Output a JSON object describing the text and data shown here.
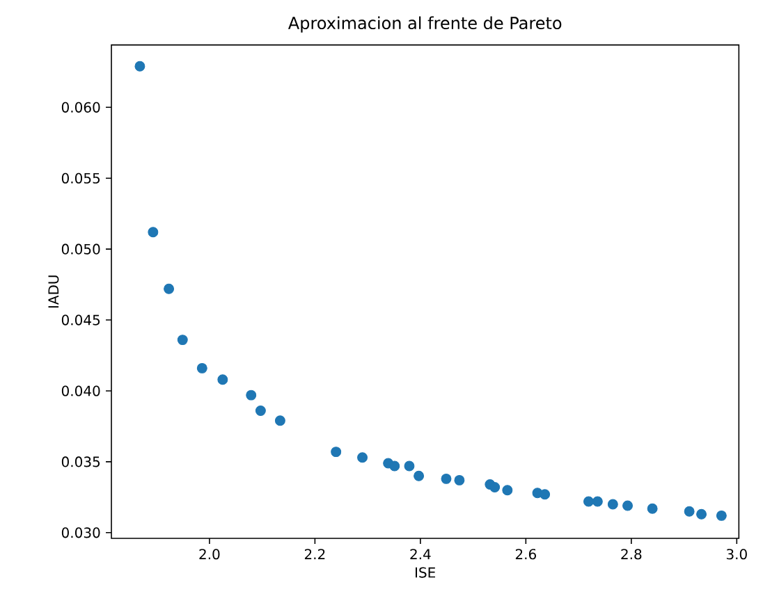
{
  "chart_data": {
    "type": "scatter",
    "title": "Aproximacion al frente de Pareto",
    "xlabel": "ISE",
    "ylabel": "IADU",
    "x": [
      1.868,
      1.893,
      1.923,
      1.949,
      1.986,
      2.025,
      2.079,
      2.097,
      2.134,
      2.24,
      2.29,
      2.339,
      2.351,
      2.379,
      2.397,
      2.449,
      2.474,
      2.532,
      2.541,
      2.565,
      2.622,
      2.636,
      2.719,
      2.736,
      2.765,
      2.793,
      2.84,
      2.91,
      2.933,
      2.971
    ],
    "series": [
      {
        "color": "#1f77b4",
        "values": [
          0.0629,
          0.0512,
          0.0472,
          0.0436,
          0.0416,
          0.0408,
          0.0397,
          0.0386,
          0.0379,
          0.0357,
          0.0353,
          0.0349,
          0.0347,
          0.0347,
          0.034,
          0.0338,
          0.0337,
          0.0334,
          0.0332,
          0.033,
          0.0328,
          0.0327,
          0.0322,
          0.0322,
          0.032,
          0.0319,
          0.0317,
          0.0315,
          0.0313,
          0.0312
        ]
      }
    ],
    "grid": false,
    "xlim": [
      1.814,
      3.004
    ],
    "ylim": [
      0.0296,
      0.0644
    ],
    "xticks": [
      {
        "value": 2.0,
        "label": "2.0"
      },
      {
        "value": 2.2,
        "label": "2.2"
      },
      {
        "value": 2.4,
        "label": "2.4"
      },
      {
        "value": 2.6,
        "label": "2.6"
      },
      {
        "value": 2.8,
        "label": "2.8"
      },
      {
        "value": 3.0,
        "label": "3.0"
      }
    ],
    "yticks": [
      {
        "value": 0.03,
        "label": "0.030"
      },
      {
        "value": 0.035,
        "label": "0.035"
      },
      {
        "value": 0.04,
        "label": "0.040"
      },
      {
        "value": 0.045,
        "label": "0.045"
      },
      {
        "value": 0.05,
        "label": "0.050"
      },
      {
        "value": 0.055,
        "label": "0.055"
      },
      {
        "value": 0.06,
        "label": "0.060"
      }
    ]
  }
}
